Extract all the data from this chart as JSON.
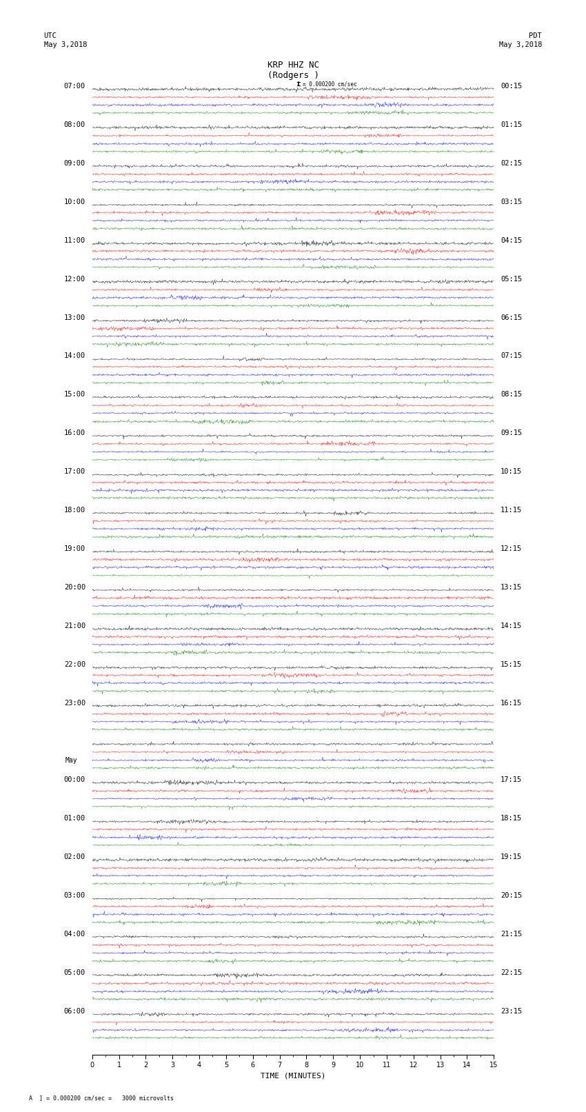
{
  "title_line1": "KRP HHZ NC",
  "title_line2": "(Rodgers )",
  "left_header_line1": "UTC",
  "left_header_line2": "May 3,2018",
  "right_header_line1": "PDT",
  "right_header_line2": "May 3,2018",
  "scale_label": "= 0.000200 cm/sec",
  "scale_label2": "= 0.000200 cm/sec =   3000 microvolts",
  "xlabel": "TIME (MINUTES)",
  "trace_colors": [
    "black",
    "red",
    "blue",
    "green"
  ],
  "duration_minutes": 15,
  "fig_width": 8.5,
  "fig_height": 16.13,
  "bg_color": "white",
  "utc_times": [
    "07:00",
    "08:00",
    "09:00",
    "10:00",
    "11:00",
    "12:00",
    "13:00",
    "14:00",
    "15:00",
    "16:00",
    "17:00",
    "18:00",
    "19:00",
    "20:00",
    "21:00",
    "22:00",
    "23:00",
    "May",
    "00:00",
    "01:00",
    "02:00",
    "03:00",
    "04:00",
    "05:00",
    "06:00"
  ],
  "pdt_times": [
    "00:15",
    "01:15",
    "02:15",
    "03:15",
    "04:15",
    "05:15",
    "06:15",
    "07:15",
    "08:15",
    "09:15",
    "10:15",
    "11:15",
    "12:15",
    "13:15",
    "14:15",
    "15:15",
    "16:15",
    "",
    "17:15",
    "18:15",
    "19:15",
    "20:15",
    "21:15",
    "22:15",
    "23:15"
  ],
  "num_rows": 25,
  "traces_per_row": 4,
  "noise_amplitude": 0.35,
  "tick_fontsize": 7,
  "label_fontsize": 7.5,
  "title_fontsize": 9
}
